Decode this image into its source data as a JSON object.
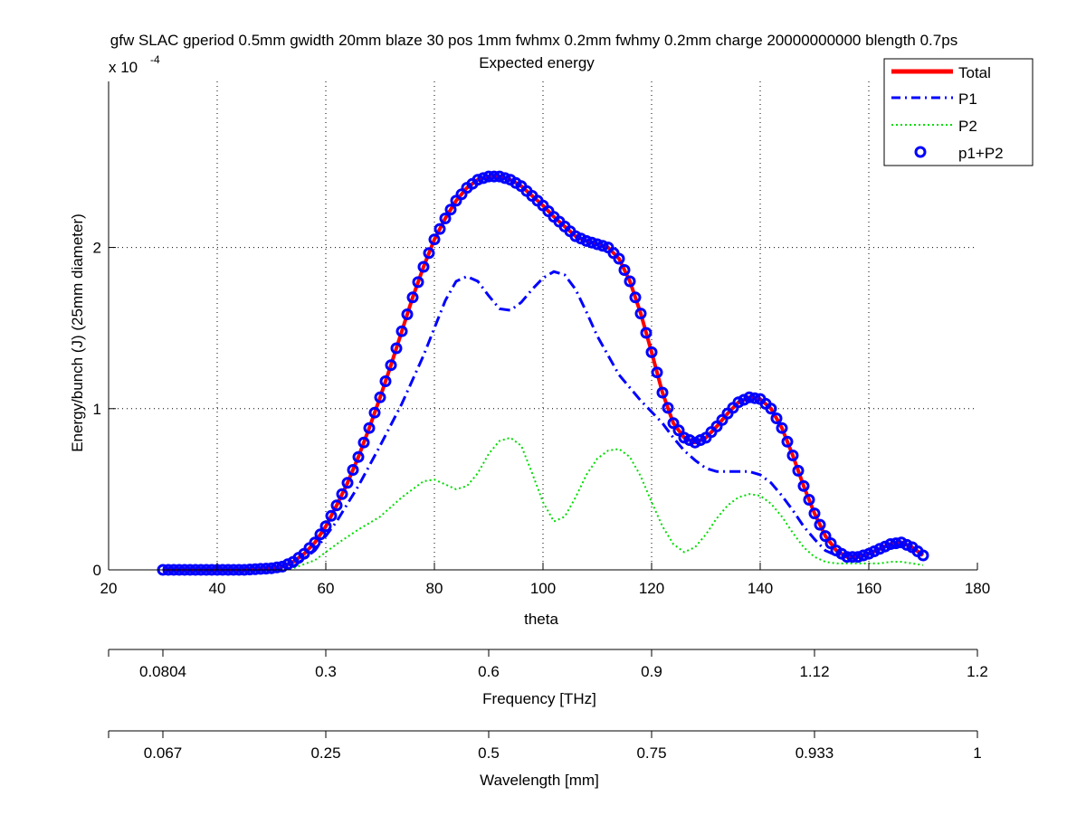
{
  "chart_data": {
    "type": "line",
    "title": "gfw SLAC gperiod 0.5mm gwidth 20mm blaze 30 pos 1mm fwhmx 0.2mm fwhmy 0.2mm charge 20000000000 blength 0.7ps",
    "subtitle": "Expected energy",
    "xlabel": "theta",
    "ylabel": "Energy/bunch (J) (25mm diameter)",
    "y_exponent_base": "x 10",
    "y_exponent_power": "-4",
    "xlim": [
      20,
      180
    ],
    "ylim": [
      0,
      3.03
    ],
    "grid": true,
    "legend_position": "top-right",
    "x_ticks": [
      20,
      40,
      60,
      80,
      100,
      120,
      140,
      160,
      180
    ],
    "y_ticks": [
      0,
      1,
      2
    ],
    "series": [
      {
        "name": "Total",
        "color": "#ff0000",
        "style": "solid",
        "x": [
          30,
          35,
          40,
          45,
          50,
          52,
          54,
          56,
          58,
          60,
          62,
          64,
          66,
          68,
          70,
          72,
          74,
          76,
          78,
          80,
          82,
          84,
          86,
          88,
          90,
          92,
          94,
          96,
          98,
          100,
          102,
          104,
          106,
          108,
          110,
          112,
          114,
          116,
          118,
          120,
          122,
          124,
          126,
          128,
          130,
          132,
          134,
          136,
          138,
          140,
          142,
          144,
          146,
          148,
          150,
          152,
          154,
          156,
          158,
          160,
          162,
          164,
          166,
          168,
          170
        ],
        "values": [
          0,
          0,
          0,
          0,
          0.01,
          0.02,
          0.05,
          0.1,
          0.17,
          0.27,
          0.4,
          0.54,
          0.7,
          0.88,
          1.07,
          1.27,
          1.48,
          1.69,
          1.88,
          2.05,
          2.18,
          2.29,
          2.37,
          2.42,
          2.44,
          2.44,
          2.42,
          2.38,
          2.32,
          2.26,
          2.19,
          2.13,
          2.07,
          2.04,
          2.02,
          2.0,
          1.93,
          1.79,
          1.59,
          1.35,
          1.1,
          0.91,
          0.82,
          0.79,
          0.82,
          0.89,
          0.97,
          1.04,
          1.07,
          1.06,
          1.0,
          0.88,
          0.71,
          0.52,
          0.35,
          0.21,
          0.12,
          0.08,
          0.08,
          0.1,
          0.13,
          0.16,
          0.17,
          0.14,
          0.09
        ]
      },
      {
        "name": "P1",
        "color": "#0000ff",
        "style": "dashdot",
        "x": [
          30,
          40,
          50,
          54,
          58,
          62,
          66,
          70,
          74,
          78,
          80,
          82,
          84,
          86,
          88,
          90,
          92,
          94,
          96,
          98,
          100,
          102,
          104,
          106,
          108,
          110,
          112,
          114,
          116,
          118,
          120,
          122,
          124,
          126,
          128,
          130,
          132,
          134,
          136,
          138,
          140,
          142,
          144,
          146,
          148,
          150,
          152,
          154,
          156,
          158,
          160,
          162,
          164,
          166,
          168,
          170
        ],
        "values": [
          0,
          0,
          0,
          0.02,
          0.12,
          0.3,
          0.52,
          0.77,
          1.03,
          1.33,
          1.5,
          1.67,
          1.79,
          1.82,
          1.79,
          1.7,
          1.62,
          1.61,
          1.66,
          1.74,
          1.81,
          1.85,
          1.83,
          1.74,
          1.6,
          1.45,
          1.33,
          1.21,
          1.13,
          1.05,
          0.98,
          0.91,
          0.82,
          0.74,
          0.68,
          0.63,
          0.61,
          0.61,
          0.61,
          0.61,
          0.59,
          0.54,
          0.46,
          0.37,
          0.27,
          0.19,
          0.12,
          0.09,
          0.08,
          0.08,
          0.1,
          0.13,
          0.15,
          0.15,
          0.13,
          0.1
        ]
      },
      {
        "name": "P2",
        "color": "#00dd00",
        "style": "dotted",
        "x": [
          30,
          40,
          50,
          54,
          58,
          62,
          66,
          70,
          74,
          78,
          80,
          82,
          84,
          86,
          88,
          90,
          92,
          94,
          96,
          98,
          100,
          102,
          104,
          106,
          108,
          110,
          112,
          114,
          116,
          118,
          120,
          122,
          124,
          126,
          128,
          130,
          132,
          134,
          136,
          138,
          140,
          142,
          144,
          146,
          148,
          150,
          152,
          154,
          156,
          158,
          160,
          162,
          164,
          166,
          168,
          170
        ],
        "values": [
          0,
          0,
          0,
          0.01,
          0.06,
          0.16,
          0.25,
          0.33,
          0.45,
          0.55,
          0.56,
          0.53,
          0.5,
          0.52,
          0.6,
          0.72,
          0.8,
          0.82,
          0.77,
          0.6,
          0.42,
          0.3,
          0.33,
          0.45,
          0.59,
          0.69,
          0.74,
          0.75,
          0.7,
          0.58,
          0.42,
          0.27,
          0.16,
          0.11,
          0.14,
          0.22,
          0.32,
          0.4,
          0.45,
          0.47,
          0.46,
          0.41,
          0.33,
          0.23,
          0.14,
          0.08,
          0.05,
          0.04,
          0.04,
          0.04,
          0.04,
          0.04,
          0.05,
          0.05,
          0.04,
          0.03
        ]
      },
      {
        "name": "p1+P2",
        "color": "#0000ff",
        "style": "circles",
        "x_start": 30,
        "x_end": 170,
        "x_step": 1,
        "values_from": "Total"
      }
    ],
    "secondary_axes": [
      {
        "label": "Frequency [THz]",
        "tick_labels": [
          "0.0804",
          "0.3",
          "0.6",
          "0.9",
          "1.12",
          "1.2"
        ],
        "tick_theta": [
          30,
          60,
          90,
          120,
          150,
          180
        ],
        "range_theta": [
          20,
          180
        ]
      },
      {
        "label": "Wavelength [mm]",
        "tick_labels": [
          "0.067",
          "0.25",
          "0.5",
          "0.75",
          "0.933",
          "1"
        ],
        "tick_theta": [
          30,
          60,
          90,
          120,
          150,
          180
        ],
        "range_theta": [
          20,
          180
        ]
      }
    ]
  }
}
